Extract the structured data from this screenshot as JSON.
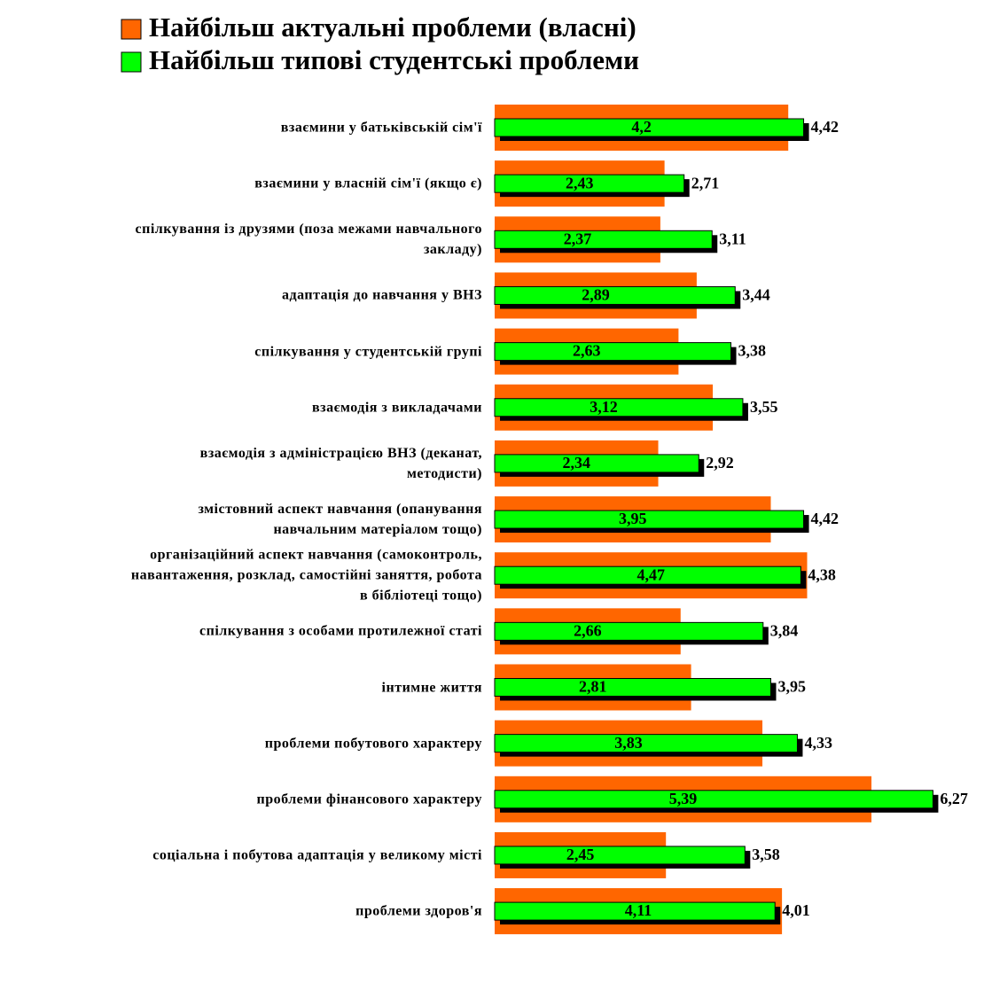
{
  "chart_data": {
    "type": "bar",
    "orientation": "horizontal",
    "categories": [
      "взаємини у батьківській сім'ї",
      "взаємини у власній сім'ї (якщо є)",
      "спілкування із друзями (поза межами навчального\nзакладу)",
      "адаптація до навчання у ВНЗ",
      "спілкування у студентській групі",
      "взаємодія з викладачами",
      "взаємодія з адміністрацією ВНЗ (деканат,\nметодисти)",
      "змістовний аспект навчання (опанування\nнавчальним матеріалом тощо)",
      "організаційний аспект навчання (самоконтроль,\nнавантаження, розклад, самостійні заняття, робота\nв бібліотеці тощо)",
      "спілкування з особами протилежної статі",
      "інтимне життя",
      "проблеми побутового характеру",
      "проблеми фінансового характеру",
      "соціальна і побутова адаптація у великому місті",
      "проблеми здоров'я"
    ],
    "series": [
      {
        "name": "Найбільш актуальні проблеми (власні)",
        "color": "#ff6600",
        "values": [
          4.2,
          2.43,
          2.37,
          2.89,
          2.63,
          3.12,
          2.34,
          3.95,
          4.47,
          2.66,
          2.81,
          3.83,
          5.39,
          2.45,
          4.11
        ],
        "value_labels": [
          "4,2",
          "2,43",
          "2,37",
          "2,89",
          "2,63",
          "3,12",
          "2,34",
          "3,95",
          "4,47",
          "2,66",
          "2,81",
          "3,83",
          "5,39",
          "2,45",
          "4,11"
        ]
      },
      {
        "name": "Найбільш типові студентські проблеми",
        "color": "#00ff00",
        "values": [
          4.42,
          2.71,
          3.11,
          3.44,
          3.38,
          3.55,
          2.92,
          4.42,
          4.38,
          3.84,
          3.95,
          4.33,
          6.27,
          3.58,
          4.01
        ],
        "value_labels": [
          "4,42",
          "2,71",
          "3,11",
          "3,44",
          "3,38",
          "3,55",
          "2,92",
          "4,42",
          "4,38",
          "3,84",
          "3,95",
          "4,33",
          "6,27",
          "3,58",
          "4,01"
        ]
      }
    ],
    "xlim": [
      0,
      7
    ]
  }
}
